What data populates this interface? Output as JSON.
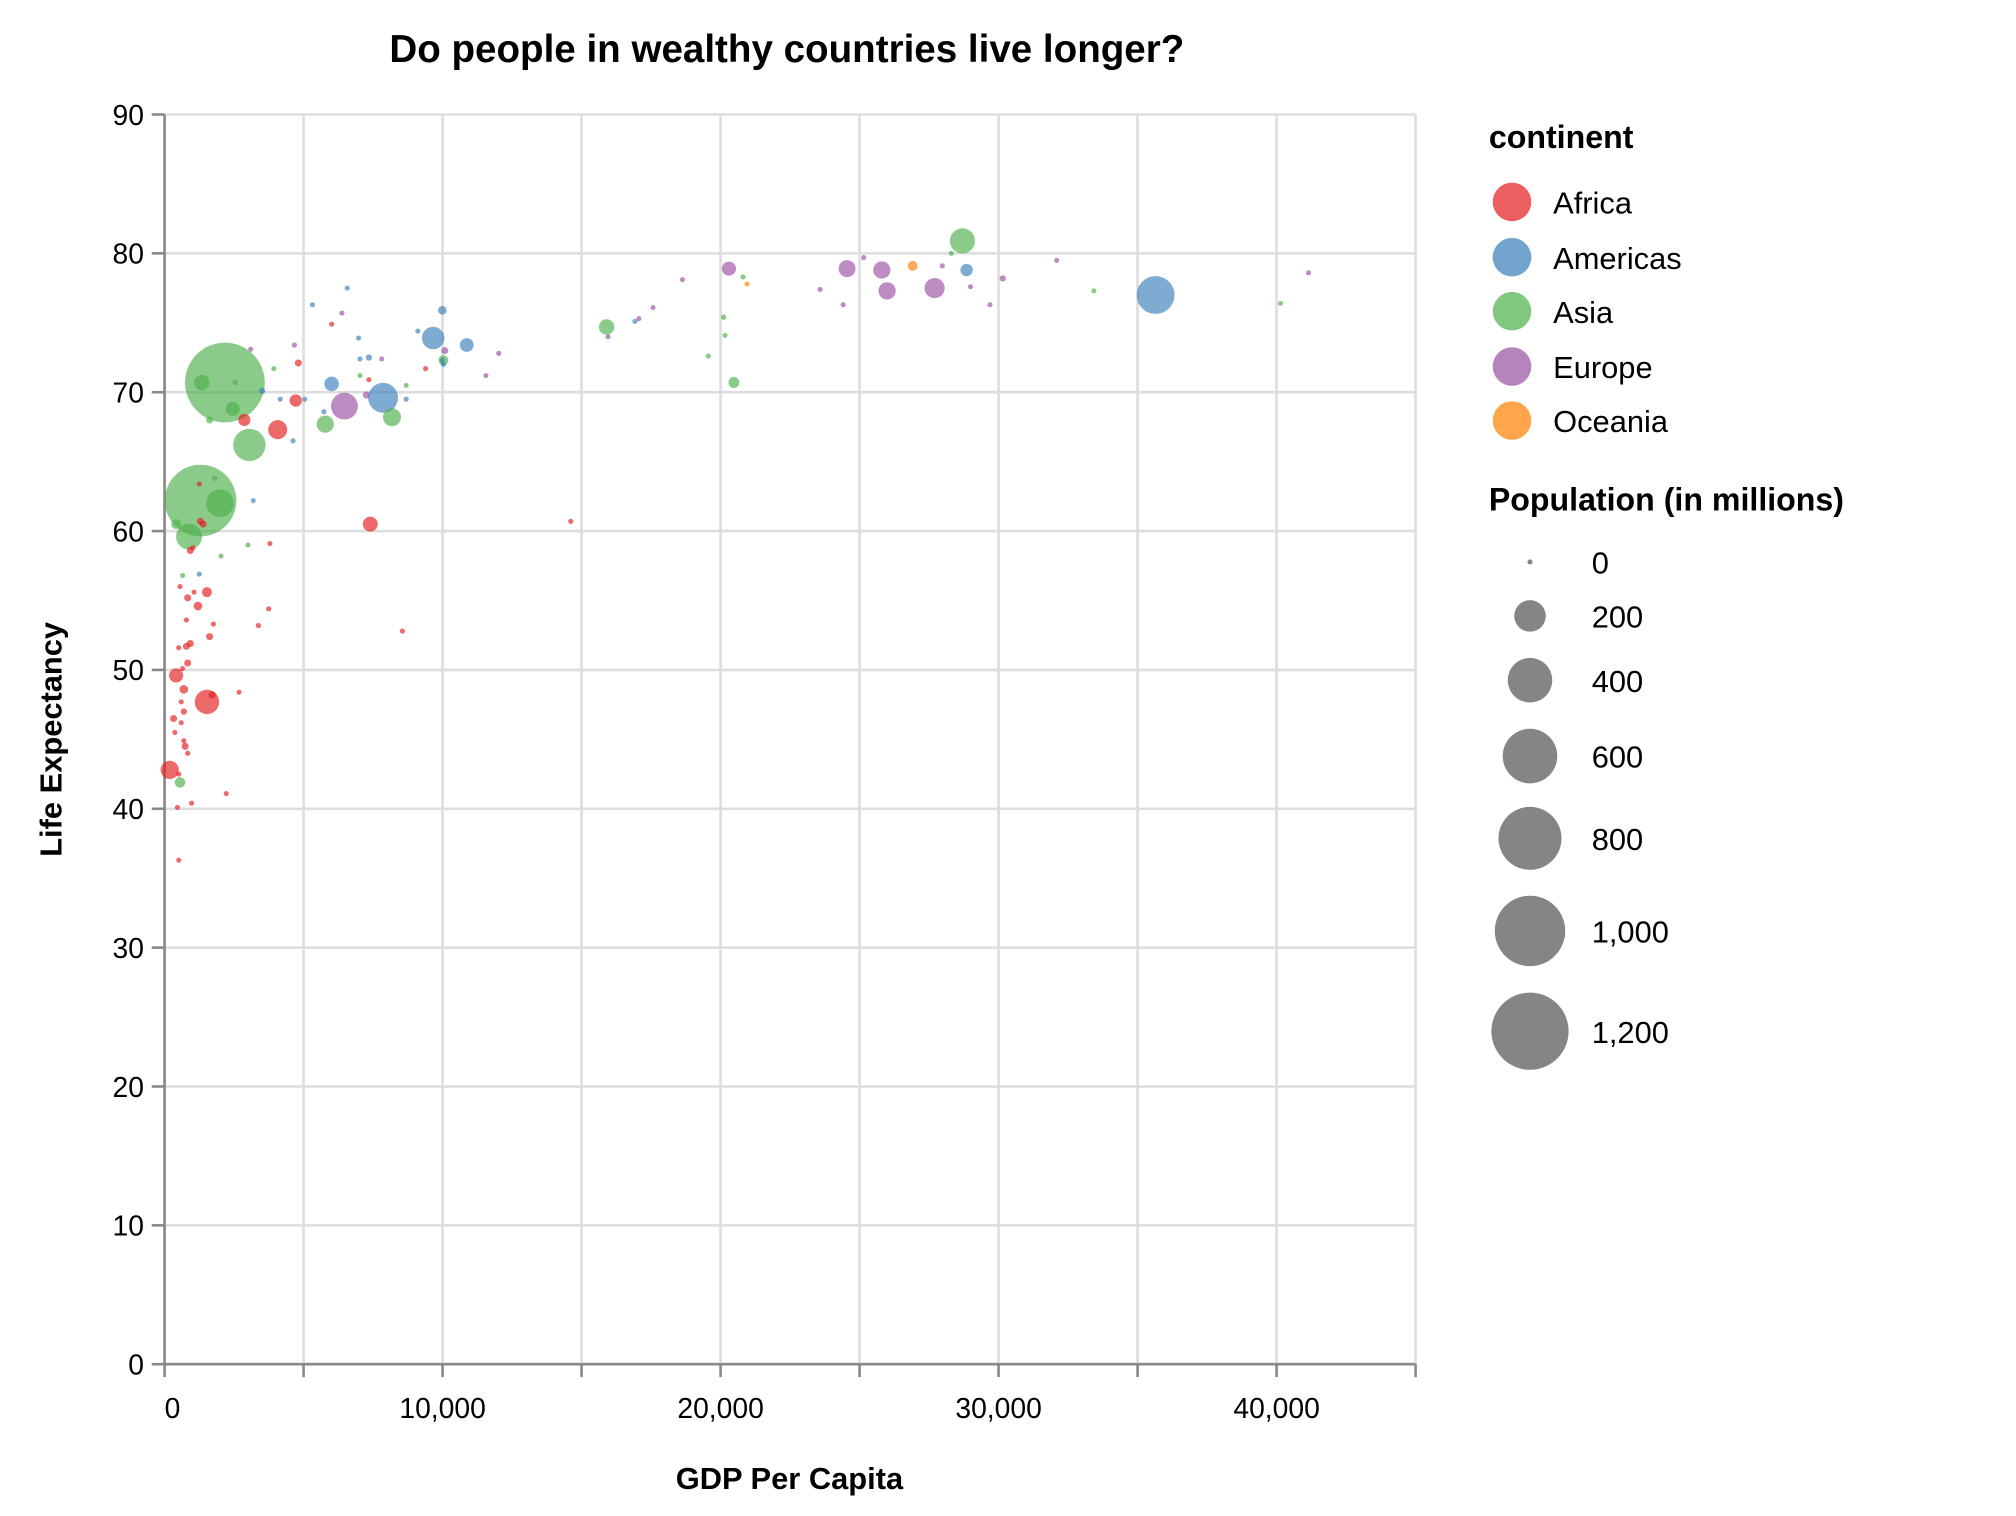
{
  "chart_data": {
    "type": "scatter",
    "title": "Do people in wealthy countries live longer?",
    "xlabel": "GDP Per Capita",
    "ylabel": "Life Expectancy",
    "xlim": [
      0,
      45000
    ],
    "ylim": [
      0,
      90
    ],
    "x_ticks": [
      "0",
      "10,000",
      "20,000",
      "30,000",
      "40,000"
    ],
    "y_ticks": [
      "0",
      "10",
      "20",
      "30",
      "40",
      "50",
      "60",
      "70",
      "80",
      "90"
    ],
    "grid": true,
    "legend_position": "right",
    "color_legend": {
      "title": "continent",
      "entries": [
        "Africa",
        "Americas",
        "Asia",
        "Europe",
        "Oceania"
      ],
      "colors": {
        "Africa": "#e41a1c",
        "Americas": "#377eb8",
        "Asia": "#4daf4a",
        "Europe": "#984ea3",
        "Oceania": "#ff7f00"
      }
    },
    "size_legend": {
      "title": "Population (in millions)",
      "values": [
        0,
        200,
        400,
        600,
        800,
        1000,
        1200
      ],
      "labels": [
        "0",
        "200",
        "400",
        "600",
        "800",
        "1,000",
        "1,200"
      ]
    },
    "fields": [
      "gdp_per_capita",
      "life_expectancy",
      "population_millions",
      "continent"
    ],
    "points": [
      [
        14612,
        60.7,
        2,
        "Africa"
      ],
      [
        8555,
        52.8,
        2,
        "Africa"
      ],
      [
        7400,
        60.5,
        45,
        "Africa"
      ],
      [
        4070,
        67.3,
        73,
        "Africa"
      ],
      [
        4717,
        69.4,
        31,
        "Africa"
      ],
      [
        4810,
        72.1,
        10,
        "Africa"
      ],
      [
        6010,
        74.9,
        5,
        "Africa"
      ],
      [
        7350,
        70.9,
        2,
        "Africa"
      ],
      [
        9390,
        71.7,
        3,
        "Africa"
      ],
      [
        2870,
        68.0,
        30,
        "Africa"
      ],
      [
        3790,
        59.1,
        2,
        "Africa"
      ],
      [
        3745,
        54.4,
        2,
        "Africa"
      ],
      [
        3375,
        53.2,
        2,
        "Africa"
      ],
      [
        2680,
        48.4,
        2,
        "Africa"
      ],
      [
        2220,
        41.1,
        4,
        "Africa"
      ],
      [
        1525,
        47.7,
        120,
        "Africa"
      ],
      [
        1710,
        48.2,
        10,
        "Africa"
      ],
      [
        1620,
        52.4,
        10,
        "Africa"
      ],
      [
        1757,
        53.3,
        2,
        "Africa"
      ],
      [
        1525,
        55.6,
        20,
        "Africa"
      ],
      [
        1200,
        54.6,
        15,
        "Africa"
      ],
      [
        1060,
        55.6,
        4,
        "Africa"
      ],
      [
        830,
        55.2,
        10,
        "Africa"
      ],
      [
        785,
        53.6,
        3,
        "Africa"
      ],
      [
        555,
        56.0,
        2,
        "Africa"
      ],
      [
        1250,
        63.4,
        3,
        "Africa"
      ],
      [
        1290,
        60.7,
        10,
        "Africa"
      ],
      [
        1387,
        60.5,
        10,
        "Africa"
      ],
      [
        1017,
        58.8,
        5,
        "Africa"
      ],
      [
        925,
        58.6,
        10,
        "Africa"
      ],
      [
        925,
        51.9,
        10,
        "Africa"
      ],
      [
        786,
        51.7,
        10,
        "Africa"
      ],
      [
        509,
        51.6,
        5,
        "Africa"
      ],
      [
        832,
        50.5,
        10,
        "Africa"
      ],
      [
        648,
        50.1,
        5,
        "Africa"
      ],
      [
        416,
        49.6,
        40,
        "Africa"
      ],
      [
        693,
        48.6,
        15,
        "Africa"
      ],
      [
        600,
        47.7,
        5,
        "Africa"
      ],
      [
        693,
        47.0,
        8,
        "Africa"
      ],
      [
        324,
        46.5,
        10,
        "Africa"
      ],
      [
        600,
        46.2,
        3,
        "Africa"
      ],
      [
        370,
        45.5,
        3,
        "Africa"
      ],
      [
        693,
        44.9,
        5,
        "Africa"
      ],
      [
        740,
        44.5,
        10,
        "Africa"
      ],
      [
        832,
        44.0,
        3,
        "Africa"
      ],
      [
        185,
        42.8,
        67,
        "Africa"
      ],
      [
        509,
        42.5,
        3,
        "Africa"
      ],
      [
        971,
        40.4,
        5,
        "Africa"
      ],
      [
        462,
        40.1,
        2,
        "Africa"
      ],
      [
        509,
        36.3,
        5,
        "Africa"
      ],
      [
        35650,
        77.0,
        288,
        "Americas"
      ],
      [
        28850,
        78.8,
        31,
        "Americas"
      ],
      [
        7860,
        69.6,
        180,
        "Americas"
      ],
      [
        9660,
        73.9,
        102,
        "Americas"
      ],
      [
        10870,
        73.4,
        38,
        "Americas"
      ],
      [
        9990,
        75.9,
        15,
        "Americas"
      ],
      [
        9990,
        72.3,
        4,
        "Americas"
      ],
      [
        10030,
        72.0,
        4,
        "Americas"
      ],
      [
        9110,
        74.4,
        3,
        "Americas"
      ],
      [
        8690,
        69.5,
        3,
        "Americas"
      ],
      [
        5320,
        76.3,
        4,
        "Americas"
      ],
      [
        6570,
        77.5,
        2,
        "Americas"
      ],
      [
        6980,
        73.9,
        2,
        "Americas"
      ],
      [
        7030,
        72.4,
        3,
        "Americas"
      ],
      [
        7350,
        72.5,
        8,
        "Americas"
      ],
      [
        6010,
        70.6,
        42,
        "Americas"
      ],
      [
        5730,
        68.6,
        5,
        "Americas"
      ],
      [
        5040,
        69.5,
        4,
        "Americas"
      ],
      [
        4160,
        69.5,
        3,
        "Americas"
      ],
      [
        3510,
        70.1,
        8,
        "Americas"
      ],
      [
        4620,
        66.5,
        5,
        "Americas"
      ],
      [
        3190,
        62.2,
        5,
        "Americas"
      ],
      [
        1250,
        56.9,
        5,
        "Americas"
      ],
      [
        16920,
        75.1,
        2,
        "Americas"
      ],
      [
        28700,
        80.9,
        127,
        "Asia"
      ],
      [
        2170,
        70.7,
        1280,
        "Asia"
      ],
      [
        1295,
        62.2,
        1034,
        "Asia"
      ],
      [
        3050,
        66.2,
        211,
        "Asia"
      ],
      [
        1990,
        62.0,
        153,
        "Asia"
      ],
      [
        880,
        59.6,
        136,
        "Asia"
      ],
      [
        8180,
        68.2,
        66,
        "Asia"
      ],
      [
        5780,
        67.7,
        60,
        "Asia"
      ],
      [
        1620,
        68.0,
        10,
        "Asia"
      ],
      [
        1340,
        70.7,
        48,
        "Asia"
      ],
      [
        2540,
        70.7,
        5,
        "Asia"
      ],
      [
        2450,
        68.8,
        40,
        "Asia"
      ],
      [
        3930,
        71.7,
        4,
        "Asia"
      ],
      [
        7030,
        71.2,
        1,
        "Asia"
      ],
      [
        8690,
        70.5,
        2,
        "Asia"
      ],
      [
        10030,
        72.3,
        20,
        "Asia"
      ],
      [
        15900,
        74.7,
        48,
        "Asia"
      ],
      [
        20110,
        75.4,
        6,
        "Asia"
      ],
      [
        20160,
        74.1,
        1,
        "Asia"
      ],
      [
        19560,
        72.6,
        1,
        "Asia"
      ],
      [
        20810,
        78.3,
        2,
        "Asia"
      ],
      [
        20480,
        70.7,
        24,
        "Asia"
      ],
      [
        28300,
        80.0,
        2,
        "Asia"
      ],
      [
        33430,
        77.3,
        2,
        "Asia"
      ],
      [
        40140,
        76.4,
        2,
        "Asia"
      ],
      [
        416,
        60.5,
        20,
        "Asia"
      ],
      [
        3000,
        59.0,
        5,
        "Asia"
      ],
      [
        2030,
        58.2,
        5,
        "Asia"
      ],
      [
        650,
        56.8,
        3,
        "Asia"
      ],
      [
        555,
        41.9,
        22,
        "Asia"
      ],
      [
        1800,
        63.8,
        3,
        "Asia"
      ],
      [
        6470,
        69.0,
        145,
        "Europe"
      ],
      [
        3100,
        73.1,
        2,
        "Europe"
      ],
      [
        4670,
        73.4,
        2,
        "Europe"
      ],
      [
        6380,
        75.7,
        1,
        "Europe"
      ],
      [
        7810,
        72.4,
        4,
        "Europe"
      ],
      [
        7260,
        69.8,
        10,
        "Europe"
      ],
      [
        10080,
        73.0,
        10,
        "Europe"
      ],
      [
        12020,
        72.8,
        3,
        "Europe"
      ],
      [
        11560,
        71.2,
        5,
        "Europe"
      ],
      [
        15950,
        74.0,
        5,
        "Europe"
      ],
      [
        17060,
        75.3,
        2,
        "Europe"
      ],
      [
        17570,
        76.1,
        4,
        "Europe"
      ],
      [
        18630,
        78.1,
        4,
        "Europe"
      ],
      [
        20300,
        78.9,
        40,
        "Europe"
      ],
      [
        24550,
        78.9,
        58,
        "Europe"
      ],
      [
        25150,
        79.7,
        2,
        "Europe"
      ],
      [
        25800,
        78.8,
        60,
        "Europe"
      ],
      [
        25990,
        77.3,
        60,
        "Europe"
      ],
      [
        27700,
        77.5,
        82,
        "Europe"
      ],
      [
        27975,
        79.1,
        1,
        "Europe"
      ],
      [
        23580,
        77.4,
        2,
        "Europe"
      ],
      [
        24410,
        76.3,
        2,
        "Europe"
      ],
      [
        28990,
        77.6,
        3,
        "Europe"
      ],
      [
        29690,
        76.3,
        3,
        "Europe"
      ],
      [
        30150,
        78.2,
        8,
        "Europe"
      ],
      [
        32090,
        79.5,
        2,
        "Europe"
      ],
      [
        41150,
        78.6,
        2,
        "Europe"
      ],
      [
        26910,
        79.1,
        20,
        "Oceania"
      ],
      [
        20950,
        77.8,
        4,
        "Oceania"
      ]
    ]
  }
}
